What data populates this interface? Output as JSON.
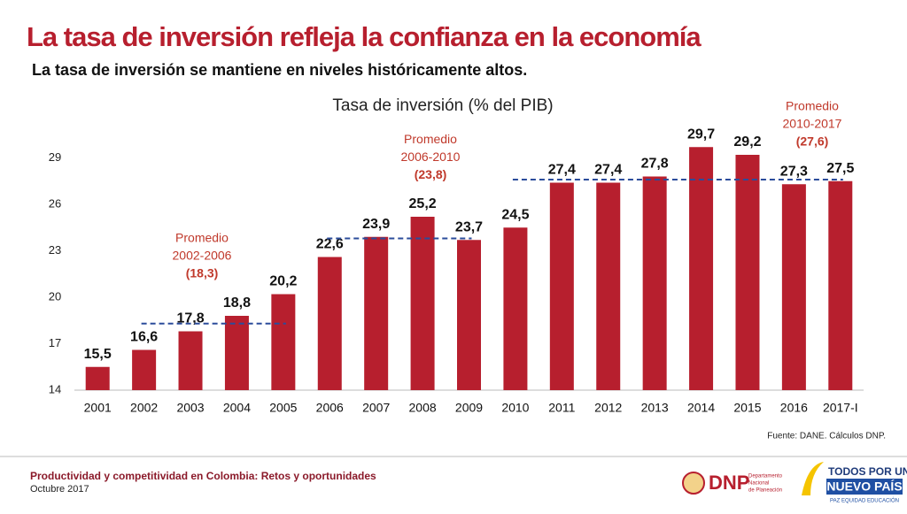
{
  "header": {
    "title": "La tasa de inversión refleja la confianza en la economía",
    "subtitle": "La tasa de inversión se mantiene en niveles históricamente altos."
  },
  "chart_data": {
    "type": "bar",
    "title": "Tasa de inversión (% del PIB)",
    "categories": [
      "2001",
      "2002",
      "2003",
      "2004",
      "2005",
      "2006",
      "2007",
      "2008",
      "2009",
      "2010",
      "2011",
      "2012",
      "2013",
      "2014",
      "2015",
      "2016",
      "2017-I"
    ],
    "values": [
      15.5,
      16.6,
      17.8,
      18.8,
      20.2,
      22.6,
      23.9,
      25.2,
      23.7,
      24.5,
      27.4,
      27.4,
      27.8,
      29.7,
      29.2,
      27.3,
      27.5
    ],
    "value_labels": [
      "15,5",
      "16,6",
      "17,8",
      "18,8",
      "20,2",
      "22,6",
      "23,9",
      "25,2",
      "23,7",
      "24,5",
      "27,4",
      "27,4",
      "27,8",
      "29,7",
      "29,2",
      "27,3",
      "27,5"
    ],
    "color": "#b71f2e",
    "ylim": [
      14,
      30
    ],
    "yticks": [
      14,
      17,
      20,
      23,
      26,
      29
    ],
    "grid": false,
    "averages": [
      {
        "label": [
          "Promedio",
          "2002-2006"
        ],
        "value": 18.3,
        "value_label": "(18,3)",
        "from": "2002",
        "to": "2005",
        "color": "#2b4c9b"
      },
      {
        "label": [
          "Promedio",
          "2006-2010"
        ],
        "value": 23.8,
        "value_label": "(23,8)",
        "from": "2006",
        "to": "2009",
        "color": "#2b4c9b"
      },
      {
        "label": [
          "Promedio",
          "2010-2017"
        ],
        "value": 27.6,
        "value_label": "(27,6)",
        "from": "2010",
        "to": "2017-I",
        "color": "#2b4c9b"
      }
    ]
  },
  "source": "Fuente: DANE. Cálculos DNP.",
  "footer": {
    "line1": "Productividad y competitividad en Colombia: Retos y oportunidades",
    "line2": "Octubre 2017",
    "dnp": "DNP",
    "dnp_sub": [
      "Departamento",
      "Nacional",
      "de Planeación"
    ],
    "gov": [
      "TODOS POR UN",
      "NUEVO PAÍS"
    ],
    "gov_sub": "PAZ  EQUIDAD  EDUCACIÓN"
  }
}
